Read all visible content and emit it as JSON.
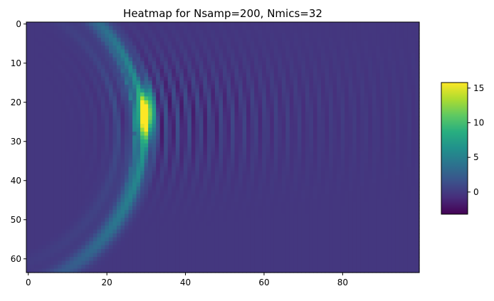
{
  "chart_data": {
    "type": "heatmap",
    "title": "Heatmap for Nsamp=200, Nmics=32",
    "x_ticks": [
      0,
      20,
      40,
      60,
      80
    ],
    "y_ticks": [
      0,
      10,
      20,
      30,
      40,
      50,
      60
    ],
    "xlim": [
      -0.5,
      99.5
    ],
    "ylim": [
      63.5,
      -0.5
    ],
    "y_axis_inverted": true,
    "grid": false,
    "colormap": "viridis",
    "colorbar": {
      "ticks": [
        0,
        5,
        10,
        15
      ],
      "range": [
        -3.2,
        15.8
      ],
      "placement": "right"
    },
    "field": {
      "background": -0.2,
      "arc_center": [
        -12,
        28
      ],
      "arc_radius": 41,
      "peak_value": 15.8,
      "peak_location": [
        30,
        23
      ],
      "ripple_period": 2.8
    }
  }
}
